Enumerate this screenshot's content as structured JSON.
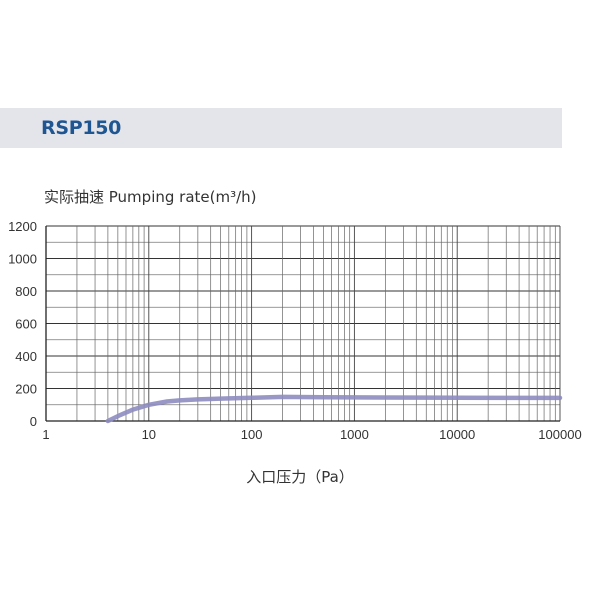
{
  "header": {
    "title": "RSP150"
  },
  "chart_data": {
    "type": "line",
    "title": "RSP150",
    "ylabel": "实际抽速 Pumping rate(m³/h)",
    "xlabel": "入口压力（Pa）",
    "xscale": "log",
    "xlim": [
      1,
      100000
    ],
    "ylim": [
      0,
      1200
    ],
    "xticks": [
      "1",
      "10",
      "100",
      "1000",
      "10000",
      "100000"
    ],
    "yticks": [
      "0",
      "200",
      "400",
      "600",
      "800",
      "1000",
      "1200"
    ],
    "grid": true,
    "legend": null,
    "series": [
      {
        "name": "RSP150",
        "color": "#8e8cc0",
        "x": [
          4,
          5,
          7,
          10,
          15,
          20,
          30,
          50,
          100,
          200,
          500,
          1000,
          5000,
          10000,
          50000,
          100000
        ],
        "values": [
          0,
          30,
          70,
          100,
          120,
          127,
          133,
          138,
          143,
          148,
          146,
          145,
          144,
          143,
          142,
          142
        ]
      }
    ]
  }
}
